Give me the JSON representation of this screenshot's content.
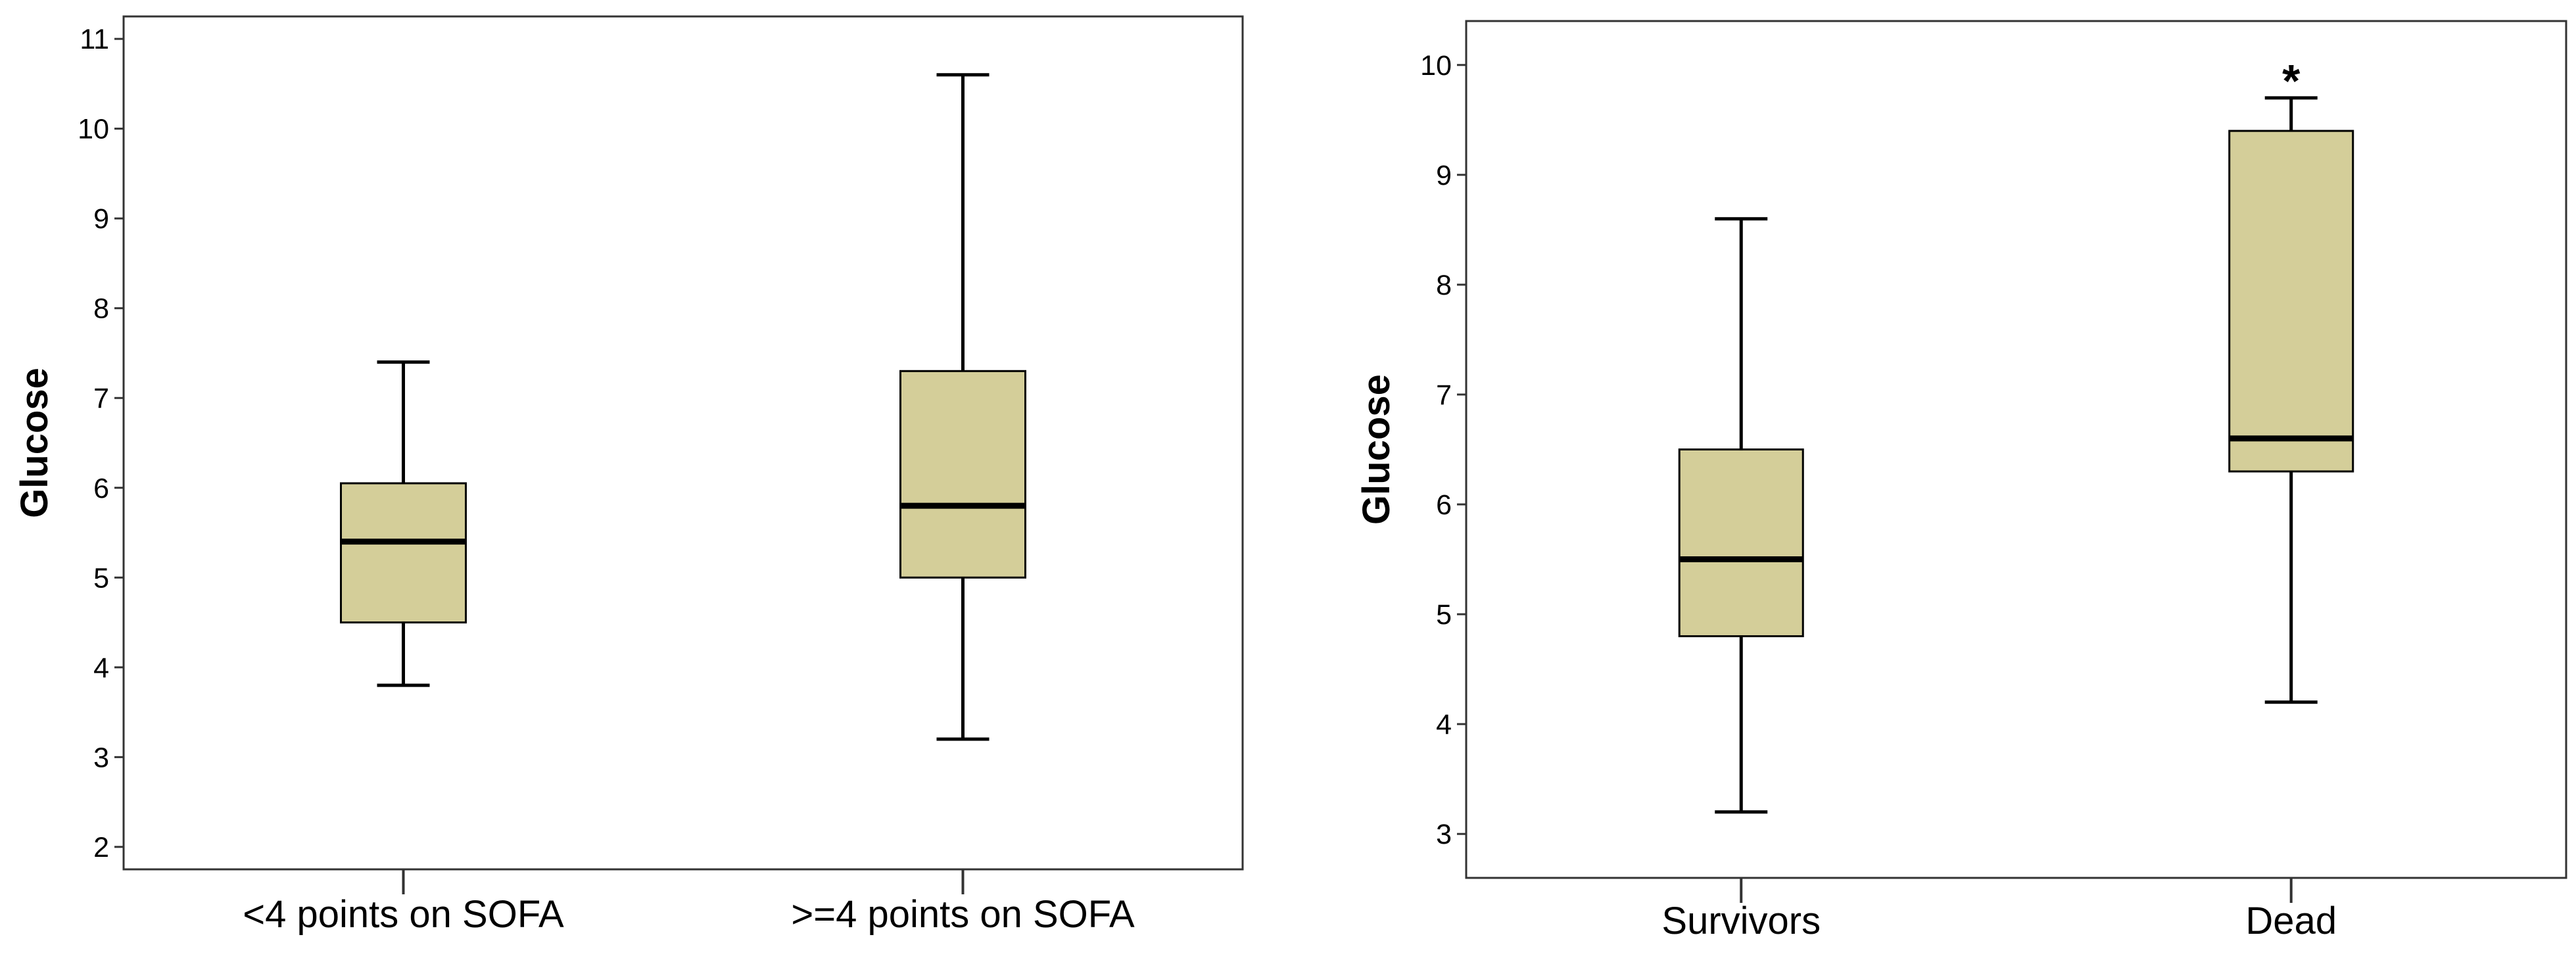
{
  "chart_data": [
    {
      "type": "boxplot",
      "title": "",
      "xlabel": "",
      "ylabel": "Glucose",
      "ylim": [
        1.75,
        11.25
      ],
      "yticks": [
        "2",
        "3",
        "4",
        "5",
        "6",
        "7",
        "8",
        "9",
        "10",
        "11"
      ],
      "grid": false,
      "categories": [
        "<4 points on SOFA",
        ">=4 points on SOFA"
      ],
      "boxes": [
        {
          "min": 3.8,
          "q1": 4.5,
          "median": 5.4,
          "q3": 6.05,
          "max": 7.4,
          "outliers": []
        },
        {
          "min": 3.2,
          "q1": 5.0,
          "median": 5.8,
          "q3": 7.3,
          "max": 10.6,
          "outliers": []
        }
      ],
      "box_color": "#d4ce99"
    },
    {
      "type": "boxplot",
      "title": "",
      "xlabel": "",
      "ylabel": "Glucose",
      "ylim": [
        2.6,
        10.4
      ],
      "yticks": [
        "3",
        "4",
        "5",
        "6",
        "7",
        "8",
        "9",
        "10"
      ],
      "grid": false,
      "categories": [
        "Survivors",
        "Dead"
      ],
      "boxes": [
        {
          "min": 3.2,
          "q1": 4.8,
          "median": 5.5,
          "q3": 6.5,
          "max": 8.6,
          "outliers": []
        },
        {
          "min": 4.2,
          "q1": 6.3,
          "median": 6.6,
          "q3": 9.4,
          "max": 9.7,
          "outliers": [
            {
              "value": 9.95,
              "symbol": "*"
            }
          ]
        }
      ],
      "box_color": "#d4ce99"
    }
  ]
}
